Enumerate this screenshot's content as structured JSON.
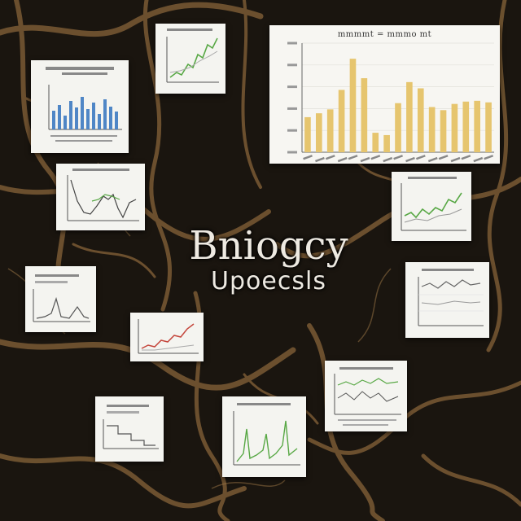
{
  "title": {
    "main": "Bniogcy",
    "sub": "Upoecsls"
  },
  "main_chart_title": "mmmmt = mmmo mt",
  "colors": {
    "background": "#1a150f",
    "roots": "#7a5a34",
    "bars": "#e6c56e",
    "blue_bars": "#4f86c6",
    "green_line": "#58a845",
    "red_line": "#c4463c",
    "card": "#f4f4f0"
  },
  "chart_data": {
    "type": "bar",
    "categories": [
      "",
      "",
      "",
      "",
      "",
      "",
      "",
      "",
      "",
      "",
      "",
      "",
      "",
      "",
      "",
      "",
      ""
    ],
    "values": [
      45,
      50,
      55,
      80,
      120,
      95,
      25,
      22,
      63,
      90,
      82,
      58,
      54,
      62,
      65,
      66,
      64
    ],
    "title": "",
    "ylim": [
      0,
      140
    ]
  }
}
